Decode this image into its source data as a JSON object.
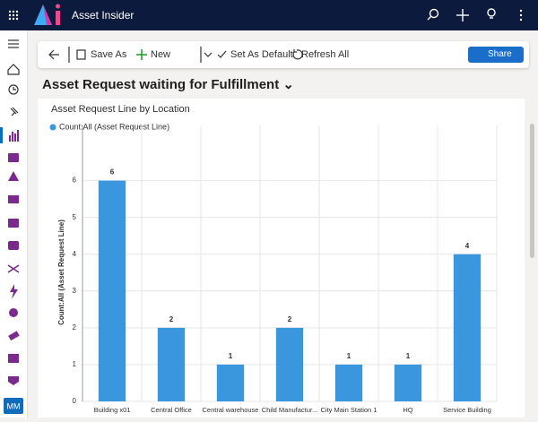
{
  "app": {
    "name": "Asset Insider",
    "user_initials": "MM"
  },
  "toolbar": {
    "save_as": "Save As",
    "new": "New",
    "set_default": "Set As Default",
    "refresh": "Refresh All",
    "share": "Share"
  },
  "view_title": "Asset Request waiting for Fulfillment",
  "chart_data": {
    "type": "bar",
    "title": "Asset Request Line by Location",
    "y_label": "Count:All (Asset Request Line)",
    "categories": [
      "Building x01",
      "Central Office",
      "Central warehouse",
      "Child Manufactur...",
      "City Main Station 1",
      "HQ",
      "Service Building"
    ],
    "series": [
      {
        "name": "Count:All (Asset Request Line)",
        "color": "#3a96dd",
        "values": [
          6,
          2,
          1,
          2,
          1,
          1,
          4
        ]
      }
    ],
    "ylim": [
      0,
      7.5
    ],
    "yticks": [
      0,
      1,
      2,
      3,
      4,
      5,
      6
    ],
    "grid": true
  }
}
